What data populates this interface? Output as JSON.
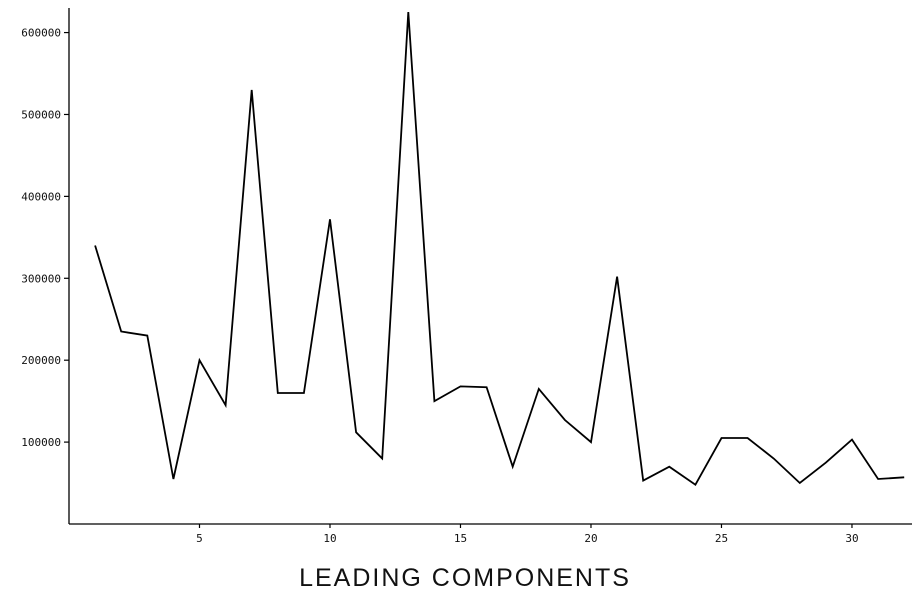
{
  "chart_data": {
    "type": "line",
    "title": "",
    "xlabel": "LEADING COMPONENTS",
    "ylabel": "",
    "xlim": [
      0,
      32.3
    ],
    "ylim": [
      0,
      630000
    ],
    "x_ticks": [
      5,
      10,
      15,
      20,
      25,
      30
    ],
    "x_tick_labels": [
      "5",
      "10",
      "15",
      "20",
      "25",
      "30"
    ],
    "y_ticks": [
      100000,
      200000,
      300000,
      400000,
      500000,
      600000
    ],
    "y_tick_labels": [
      "100000",
      "200000",
      "300000",
      "400000",
      "500000",
      "600000"
    ],
    "grid": false,
    "legend": "none",
    "line_color": "#000000",
    "series": [
      {
        "x": [
          1,
          2,
          3,
          4,
          5,
          6,
          7,
          8,
          9,
          10,
          11,
          12,
          13,
          14,
          15,
          16,
          17,
          18,
          19,
          20,
          21,
          22,
          23,
          24,
          25,
          26,
          27,
          28,
          29,
          30,
          31,
          32
        ],
        "values": [
          340000,
          235000,
          230000,
          55000,
          200000,
          145000,
          530000,
          160000,
          160000,
          372000,
          112000,
          80000,
          625000,
          150000,
          168000,
          167000,
          70000,
          165000,
          127000,
          100000,
          302000,
          53000,
          70000,
          48000,
          105000,
          105000,
          80000,
          50000,
          75000,
          103000,
          55000,
          57000
        ]
      }
    ]
  }
}
